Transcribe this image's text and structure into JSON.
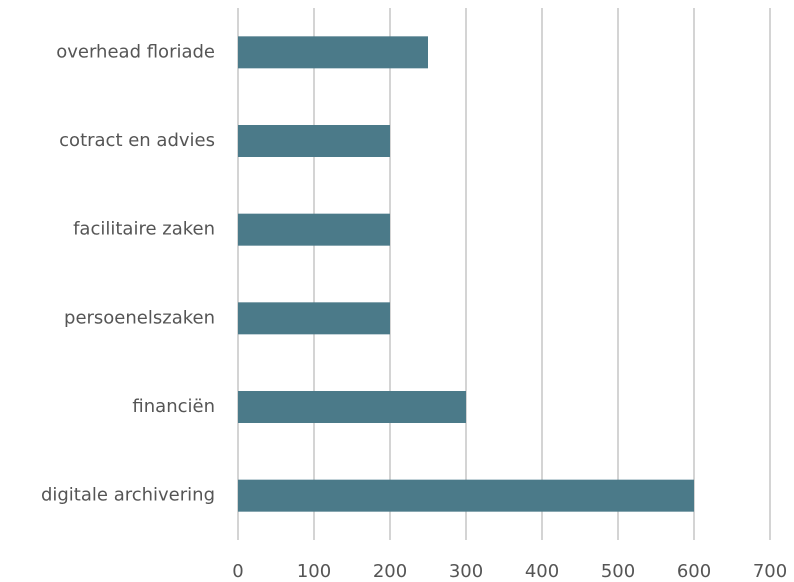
{
  "chart_data": {
    "type": "hbar",
    "categories": [
      "overhead floriade",
      "cotract en advies",
      "facilitaire zaken",
      "persoenelszaken",
      "financiën",
      "digitale archivering"
    ],
    "values": [
      250,
      200,
      200,
      200,
      300,
      600
    ],
    "color": "#4b7a89",
    "xlim": [
      0,
      700
    ],
    "xticks": [
      0,
      100,
      200,
      300,
      400,
      500,
      600,
      700
    ],
    "grid": true
  }
}
